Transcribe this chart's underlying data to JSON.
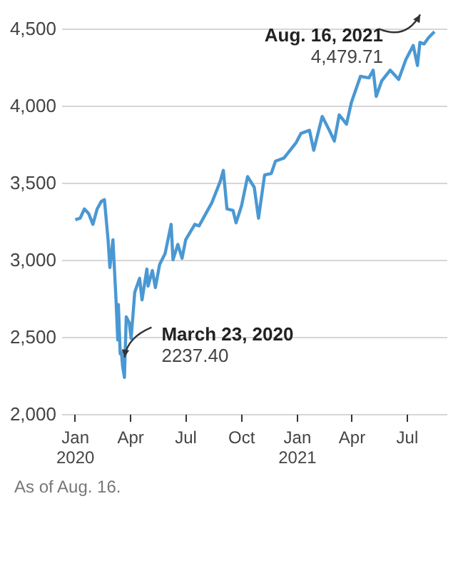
{
  "chart_data": {
    "type": "line",
    "color": "#4a98d3",
    "grid": "y",
    "line_style": "solid",
    "marker": "none",
    "x": [
      "2020-01-02",
      "2020-01-10",
      "2020-01-17",
      "2020-01-24",
      "2020-01-31",
      "2020-02-07",
      "2020-02-14",
      "2020-02-19",
      "2020-02-25",
      "2020-02-28",
      "2020-03-04",
      "2020-03-09",
      "2020-03-12",
      "2020-03-13",
      "2020-03-16",
      "2020-03-18",
      "2020-03-20",
      "2020-03-23",
      "2020-03-26",
      "2020-03-31",
      "2020-04-03",
      "2020-04-09",
      "2020-04-17",
      "2020-04-21",
      "2020-04-29",
      "2020-05-01",
      "2020-05-08",
      "2020-05-13",
      "2020-05-20",
      "2020-05-29",
      "2020-06-08",
      "2020-06-11",
      "2020-06-19",
      "2020-06-26",
      "2020-07-02",
      "2020-07-17",
      "2020-07-24",
      "2020-07-31",
      "2020-08-14",
      "2020-08-28",
      "2020-09-02",
      "2020-09-08",
      "2020-09-18",
      "2020-09-23",
      "2020-10-02",
      "2020-10-12",
      "2020-10-23",
      "2020-10-30",
      "2020-11-09",
      "2020-11-20",
      "2020-11-27",
      "2020-12-11",
      "2020-12-31",
      "2021-01-08",
      "2021-01-22",
      "2021-01-29",
      "2021-02-12",
      "2021-02-25",
      "2021-03-04",
      "2021-03-12",
      "2021-03-24",
      "2021-04-01",
      "2021-04-16",
      "2021-04-30",
      "2021-05-07",
      "2021-05-12",
      "2021-05-21",
      "2021-06-04",
      "2021-06-18",
      "2021-06-30",
      "2021-07-12",
      "2021-07-19",
      "2021-07-23",
      "2021-07-30",
      "2021-08-06",
      "2021-08-16"
    ],
    "values": [
      3260,
      3270,
      3330,
      3300,
      3230,
      3330,
      3380,
      3390,
      3130,
      2950,
      3130,
      2750,
      2480,
      2710,
      2390,
      2400,
      2310,
      2237.4,
      2630,
      2590,
      2490,
      2790,
      2880,
      2740,
      2940,
      2830,
      2930,
      2820,
      2970,
      3040,
      3230,
      3000,
      3100,
      3010,
      3130,
      3230,
      3220,
      3270,
      3370,
      3510,
      3580,
      3330,
      3320,
      3240,
      3350,
      3540,
      3470,
      3270,
      3550,
      3560,
      3640,
      3660,
      3760,
      3820,
      3840,
      3710,
      3930,
      3830,
      3770,
      3940,
      3880,
      4020,
      4190,
      4180,
      4230,
      4060,
      4160,
      4230,
      4170,
      4300,
      4390,
      4260,
      4410,
      4400,
      4440,
      4479.71
    ],
    "xlim": [
      "2019-12-10",
      "2021-09-05"
    ],
    "xticks": [
      {
        "value": "2020-01",
        "label": "Jan 2020"
      },
      {
        "value": "2020-04",
        "label": "Apr"
      },
      {
        "value": "2020-07",
        "label": "Jul"
      },
      {
        "value": "2020-10",
        "label": "Oct"
      },
      {
        "value": "2021-01",
        "label": "Jan 2021"
      },
      {
        "value": "2021-04",
        "label": "Apr"
      },
      {
        "value": "2021-07",
        "label": "Jul"
      }
    ],
    "ylim": [
      2000,
      4500
    ],
    "yticks": [
      {
        "value": 2000,
        "label": "2,000"
      },
      {
        "value": 2500,
        "label": "2,500"
      },
      {
        "value": 3000,
        "label": "3,000"
      },
      {
        "value": 3500,
        "label": "3,500"
      },
      {
        "value": 4000,
        "label": "4,000"
      },
      {
        "value": 4500,
        "label": "4,500"
      }
    ],
    "annotations": [
      {
        "text": "March 23, 2020",
        "x": "2020-03-23",
        "y": 2237.4
      },
      {
        "text": "2237.40",
        "x": "2020-03-23",
        "y": 2237.4
      },
      {
        "text": "Aug. 16, 2021",
        "x": "2021-08-16",
        "y": 4479.71
      },
      {
        "text": "4,479.71",
        "x": "2021-08-16",
        "y": 4479.71
      },
      "As of Aug. 16."
    ]
  }
}
